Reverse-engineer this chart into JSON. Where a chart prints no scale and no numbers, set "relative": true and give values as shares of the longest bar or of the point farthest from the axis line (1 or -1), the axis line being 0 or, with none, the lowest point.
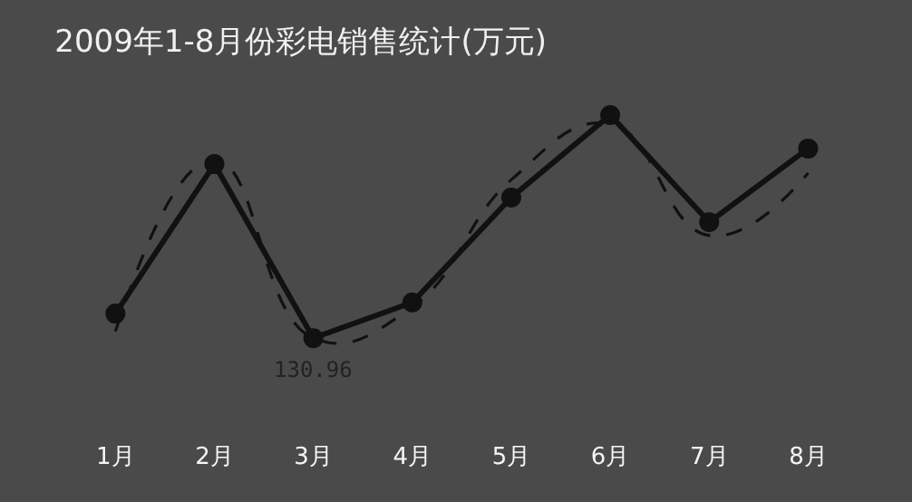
{
  "chart_data": {
    "type": "line",
    "title": "2009年1-8月份彩电销售统计(万元)",
    "categories": [
      "1月",
      "2月",
      "3月",
      "4月",
      "5月",
      "6月",
      "7月",
      "8月"
    ],
    "relative": true,
    "marker": "circle",
    "annotations": [
      {
        "text": "130.96",
        "x": "3月",
        "y": 0
      }
    ],
    "series": [
      {
        "color": "#111111",
        "line_style": "solid",
        "values": [
          0.11,
          0.78,
          0,
          0.16,
          0.63,
          1.0,
          0.52,
          0.85
        ]
      },
      {
        "color": "#111111",
        "line_style": "dashed",
        "marker": "none",
        "values": [
          0.03,
          0.8,
          0,
          0.14,
          0.71,
          0.96,
          0.46,
          0.74
        ]
      }
    ]
  }
}
